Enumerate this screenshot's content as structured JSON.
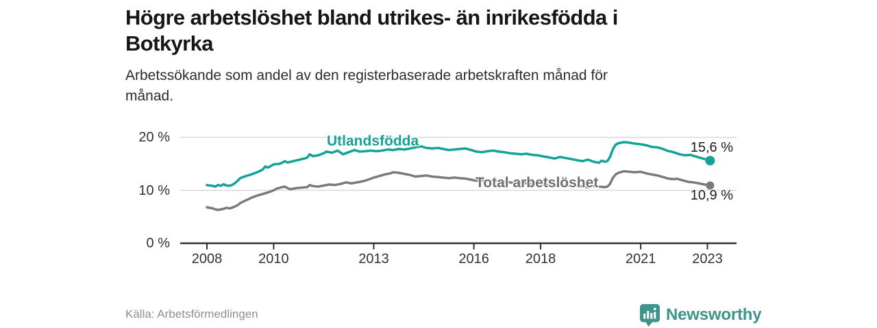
{
  "header": {
    "title": "Högre arbetslöshet bland utrikes- än inrikesfödda i Botkyrka",
    "title_lines": [
      "Högre arbetslöshet bland utrikes- än inrikesfödda i",
      "Botkyrka"
    ],
    "subtitle": "Arbetssökande som andel av den registerbaserade arbetskraften månad för månad.",
    "subtitle_lines": [
      "Arbetssökande som andel av den registerbaserade arbetskraften månad för",
      "månad."
    ]
  },
  "footer": {
    "source": "Källa: Arbetsförmedlingen",
    "brand": "Newsworthy",
    "brand_color": "#3E938A",
    "logo_icon": "newsworthy-barchart-pin-icon"
  },
  "chart_data": {
    "type": "line",
    "unit": "%",
    "grid": "horizontal",
    "legend_position": "inline-labels",
    "y_ticks": [
      0,
      10,
      20
    ],
    "y_tick_labels": [
      "0 %",
      "10 %",
      "20 %"
    ],
    "ylim": [
      0,
      22
    ],
    "x_ticks": [
      2008,
      2010,
      2013,
      2016,
      2018,
      2021,
      2023
    ],
    "x_tick_labels": [
      "2008",
      "2010",
      "2013",
      "2016",
      "2018",
      "2021",
      "2023"
    ],
    "xlim": [
      2007.2,
      2023.9
    ],
    "series": [
      {
        "name": "Utlandsfödda",
        "color": "#12A296",
        "end_value": 15.6,
        "end_label": "15,6 %",
        "points": [
          [
            2008.0,
            11.0
          ],
          [
            2008.08,
            10.9
          ],
          [
            2008.17,
            10.85
          ],
          [
            2008.25,
            10.7
          ],
          [
            2008.33,
            11.0
          ],
          [
            2008.42,
            10.85
          ],
          [
            2008.5,
            11.15
          ],
          [
            2008.58,
            10.9
          ],
          [
            2008.67,
            10.85
          ],
          [
            2008.75,
            11.0
          ],
          [
            2008.83,
            11.3
          ],
          [
            2008.92,
            11.8
          ],
          [
            2009.0,
            12.3
          ],
          [
            2009.17,
            12.7
          ],
          [
            2009.33,
            13.0
          ],
          [
            2009.5,
            13.4
          ],
          [
            2009.67,
            13.9
          ],
          [
            2009.75,
            14.5
          ],
          [
            2009.83,
            14.3
          ],
          [
            2009.92,
            14.6
          ],
          [
            2010.0,
            14.9
          ],
          [
            2010.17,
            15.0
          ],
          [
            2010.25,
            15.2
          ],
          [
            2010.33,
            15.5
          ],
          [
            2010.42,
            15.25
          ],
          [
            2010.58,
            15.5
          ],
          [
            2010.75,
            15.75
          ],
          [
            2010.92,
            16.0
          ],
          [
            2011.0,
            16.15
          ],
          [
            2011.08,
            16.8
          ],
          [
            2011.17,
            16.45
          ],
          [
            2011.33,
            16.6
          ],
          [
            2011.5,
            17.0
          ],
          [
            2011.58,
            17.3
          ],
          [
            2011.75,
            17.1
          ],
          [
            2011.92,
            17.5
          ],
          [
            2012.08,
            16.8
          ],
          [
            2012.25,
            17.2
          ],
          [
            2012.42,
            17.6
          ],
          [
            2012.58,
            17.3
          ],
          [
            2012.75,
            17.4
          ],
          [
            2012.92,
            17.5
          ],
          [
            2013.08,
            17.4
          ],
          [
            2013.25,
            17.5
          ],
          [
            2013.42,
            17.7
          ],
          [
            2013.58,
            17.6
          ],
          [
            2013.75,
            17.8
          ],
          [
            2013.92,
            17.7
          ],
          [
            2014.08,
            17.9
          ],
          [
            2014.25,
            18.1
          ],
          [
            2014.42,
            18.3
          ],
          [
            2014.58,
            18.0
          ],
          [
            2014.75,
            17.9
          ],
          [
            2014.92,
            18.0
          ],
          [
            2015.08,
            17.8
          ],
          [
            2015.25,
            17.6
          ],
          [
            2015.42,
            17.7
          ],
          [
            2015.58,
            17.8
          ],
          [
            2015.75,
            17.9
          ],
          [
            2015.92,
            17.6
          ],
          [
            2016.08,
            17.3
          ],
          [
            2016.25,
            17.2
          ],
          [
            2016.42,
            17.4
          ],
          [
            2016.58,
            17.5
          ],
          [
            2016.75,
            17.3
          ],
          [
            2016.92,
            17.2
          ],
          [
            2017.08,
            17.0
          ],
          [
            2017.25,
            16.9
          ],
          [
            2017.42,
            16.8
          ],
          [
            2017.58,
            16.9
          ],
          [
            2017.75,
            16.7
          ],
          [
            2017.92,
            16.6
          ],
          [
            2018.08,
            16.4
          ],
          [
            2018.25,
            16.2
          ],
          [
            2018.42,
            16.0
          ],
          [
            2018.58,
            16.3
          ],
          [
            2018.75,
            16.1
          ],
          [
            2018.92,
            15.9
          ],
          [
            2019.08,
            15.7
          ],
          [
            2019.25,
            15.5
          ],
          [
            2019.42,
            15.8
          ],
          [
            2019.58,
            15.4
          ],
          [
            2019.75,
            15.2
          ],
          [
            2019.83,
            15.6
          ],
          [
            2019.92,
            15.4
          ],
          [
            2020.0,
            15.5
          ],
          [
            2020.08,
            16.3
          ],
          [
            2020.17,
            17.8
          ],
          [
            2020.25,
            18.6
          ],
          [
            2020.33,
            18.9
          ],
          [
            2020.5,
            19.1
          ],
          [
            2020.67,
            19.0
          ],
          [
            2020.83,
            18.8
          ],
          [
            2021.0,
            18.7
          ],
          [
            2021.17,
            18.5
          ],
          [
            2021.33,
            18.2
          ],
          [
            2021.5,
            18.1
          ],
          [
            2021.67,
            17.8
          ],
          [
            2021.83,
            17.4
          ],
          [
            2021.92,
            17.3
          ],
          [
            2022.08,
            17.0
          ],
          [
            2022.17,
            16.8
          ],
          [
            2022.33,
            16.6
          ],
          [
            2022.5,
            16.7
          ],
          [
            2022.58,
            16.5
          ],
          [
            2022.75,
            16.2
          ],
          [
            2022.92,
            15.9
          ],
          [
            2023.0,
            15.8
          ],
          [
            2023.08,
            15.6
          ]
        ]
      },
      {
        "name": "Total arbetslöshet",
        "color": "#7A7A7A",
        "end_value": 10.9,
        "end_label": "10,9 %",
        "points": [
          [
            2008.0,
            6.8
          ],
          [
            2008.08,
            6.7
          ],
          [
            2008.17,
            6.6
          ],
          [
            2008.25,
            6.4
          ],
          [
            2008.33,
            6.3
          ],
          [
            2008.42,
            6.4
          ],
          [
            2008.5,
            6.5
          ],
          [
            2008.58,
            6.7
          ],
          [
            2008.67,
            6.6
          ],
          [
            2008.75,
            6.7
          ],
          [
            2008.83,
            6.9
          ],
          [
            2008.92,
            7.2
          ],
          [
            2009.0,
            7.6
          ],
          [
            2009.17,
            8.1
          ],
          [
            2009.33,
            8.6
          ],
          [
            2009.5,
            9.0
          ],
          [
            2009.67,
            9.3
          ],
          [
            2009.83,
            9.6
          ],
          [
            2010.0,
            10.0
          ],
          [
            2010.08,
            10.3
          ],
          [
            2010.25,
            10.6
          ],
          [
            2010.33,
            10.7
          ],
          [
            2010.42,
            10.4
          ],
          [
            2010.5,
            10.2
          ],
          [
            2010.67,
            10.4
          ],
          [
            2010.83,
            10.5
          ],
          [
            2011.0,
            10.6
          ],
          [
            2011.08,
            11.0
          ],
          [
            2011.17,
            10.8
          ],
          [
            2011.33,
            10.7
          ],
          [
            2011.5,
            10.9
          ],
          [
            2011.67,
            11.1
          ],
          [
            2011.83,
            11.0
          ],
          [
            2012.0,
            11.2
          ],
          [
            2012.17,
            11.5
          ],
          [
            2012.33,
            11.3
          ],
          [
            2012.5,
            11.5
          ],
          [
            2012.67,
            11.7
          ],
          [
            2012.83,
            12.0
          ],
          [
            2013.0,
            12.4
          ],
          [
            2013.17,
            12.7
          ],
          [
            2013.33,
            13.0
          ],
          [
            2013.5,
            13.2
          ],
          [
            2013.58,
            13.4
          ],
          [
            2013.75,
            13.3
          ],
          [
            2013.92,
            13.1
          ],
          [
            2014.08,
            12.9
          ],
          [
            2014.25,
            12.6
          ],
          [
            2014.42,
            12.7
          ],
          [
            2014.58,
            12.8
          ],
          [
            2014.75,
            12.6
          ],
          [
            2014.92,
            12.5
          ],
          [
            2015.08,
            12.4
          ],
          [
            2015.25,
            12.3
          ],
          [
            2015.42,
            12.4
          ],
          [
            2015.58,
            12.3
          ],
          [
            2015.75,
            12.2
          ],
          [
            2015.92,
            12.0
          ],
          [
            2016.08,
            11.8
          ],
          [
            2016.25,
            11.9
          ],
          [
            2016.42,
            11.8
          ],
          [
            2016.58,
            11.9
          ],
          [
            2016.75,
            11.7
          ],
          [
            2016.92,
            11.6
          ],
          [
            2017.08,
            11.5
          ],
          [
            2017.25,
            11.4
          ],
          [
            2017.42,
            11.5
          ],
          [
            2017.58,
            11.3
          ],
          [
            2017.75,
            11.2
          ],
          [
            2017.92,
            11.2
          ],
          [
            2018.08,
            11.1
          ],
          [
            2018.25,
            11.0
          ],
          [
            2018.42,
            10.9
          ],
          [
            2018.58,
            11.0
          ],
          [
            2018.75,
            10.9
          ],
          [
            2018.92,
            10.8
          ],
          [
            2019.08,
            10.9
          ],
          [
            2019.25,
            10.7
          ],
          [
            2019.42,
            10.6
          ],
          [
            2019.58,
            10.8
          ],
          [
            2019.75,
            10.7
          ],
          [
            2019.92,
            10.6
          ],
          [
            2020.0,
            10.7
          ],
          [
            2020.08,
            11.2
          ],
          [
            2020.17,
            12.4
          ],
          [
            2020.25,
            13.0
          ],
          [
            2020.33,
            13.3
          ],
          [
            2020.5,
            13.6
          ],
          [
            2020.67,
            13.5
          ],
          [
            2020.83,
            13.4
          ],
          [
            2021.0,
            13.5
          ],
          [
            2021.17,
            13.2
          ],
          [
            2021.33,
            13.0
          ],
          [
            2021.5,
            12.8
          ],
          [
            2021.67,
            12.5
          ],
          [
            2021.83,
            12.2
          ],
          [
            2022.0,
            12.1
          ],
          [
            2022.08,
            12.2
          ],
          [
            2022.25,
            11.9
          ],
          [
            2022.42,
            11.6
          ],
          [
            2022.58,
            11.5
          ],
          [
            2022.75,
            11.3
          ],
          [
            2022.92,
            11.1
          ],
          [
            2023.0,
            11.0
          ],
          [
            2023.08,
            10.9
          ]
        ]
      }
    ]
  }
}
